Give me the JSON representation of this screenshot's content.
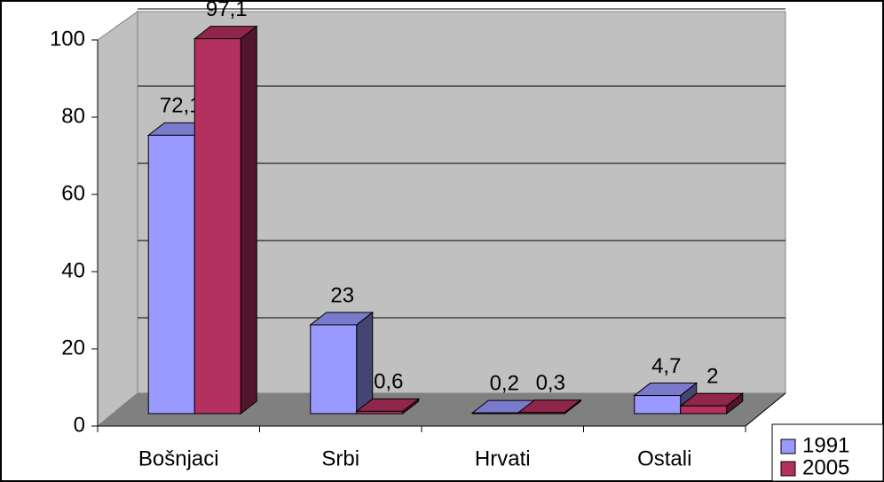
{
  "chart_data": {
    "type": "bar3d",
    "categories": [
      "Bošnjaci",
      "Srbi",
      "Hrvati",
      "Ostali"
    ],
    "series": [
      {
        "name": "1991",
        "color": "#9999ff",
        "values": [
          72.1,
          23,
          0.2,
          4.7
        ],
        "value_labels": [
          "72,1",
          "23",
          "0,2",
          "4,7"
        ]
      },
      {
        "name": "2005",
        "color": "#b3305f",
        "values": [
          97.1,
          0.6,
          0.3,
          2
        ],
        "value_labels": [
          "97,1",
          "0,6",
          "0,3",
          "2"
        ]
      }
    ],
    "ylim": [
      0,
      100
    ],
    "yticks": [
      0,
      20,
      40,
      60,
      80,
      100
    ],
    "grid": true,
    "legend": "lower right"
  }
}
